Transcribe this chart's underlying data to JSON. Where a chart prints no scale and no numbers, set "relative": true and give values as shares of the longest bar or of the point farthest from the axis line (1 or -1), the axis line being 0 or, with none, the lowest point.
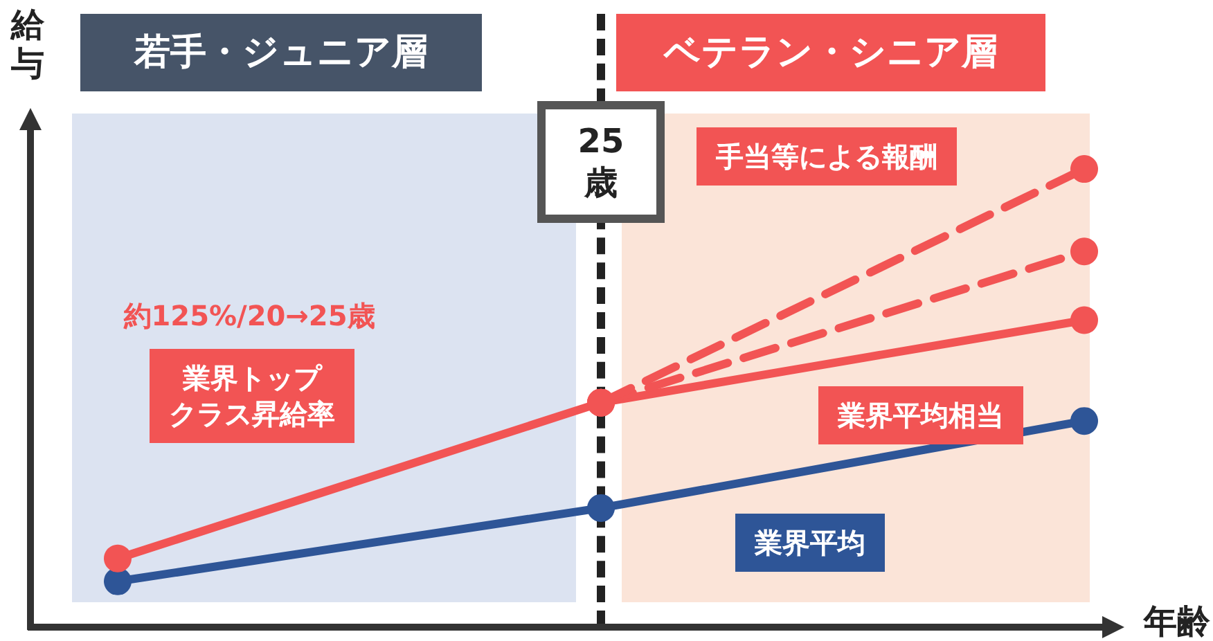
{
  "chart_data": {
    "type": "line",
    "relative": true,
    "xlabel": "年齢",
    "ylabel": "給与",
    "categories": [
      null,
      null,
      null
    ],
    "grid": false,
    "marker": "circle",
    "series": [
      {
        "color": "#2e5597",
        "values": [
          0.1,
          0.26,
          0.45
        ]
      },
      {
        "color": "#f25454",
        "values": [
          0.15,
          0.49,
          0.67
        ]
      },
      {
        "color": "#f25454",
        "values": [
          null,
          0.49,
          0.82
        ],
        "line_style": "dashed"
      },
      {
        "color": "#f25454",
        "values": [
          null,
          0.49,
          1.0
        ],
        "line_style": "dashed"
      }
    ],
    "annotations": [
      "若手・ジュニア層",
      "ベテラン・シニア層",
      "25歳",
      "手当等による報酬",
      "約125%/20→25歳",
      "業界トップクラス昇給率",
      "業界平均相当",
      "業界平均"
    ]
  }
}
